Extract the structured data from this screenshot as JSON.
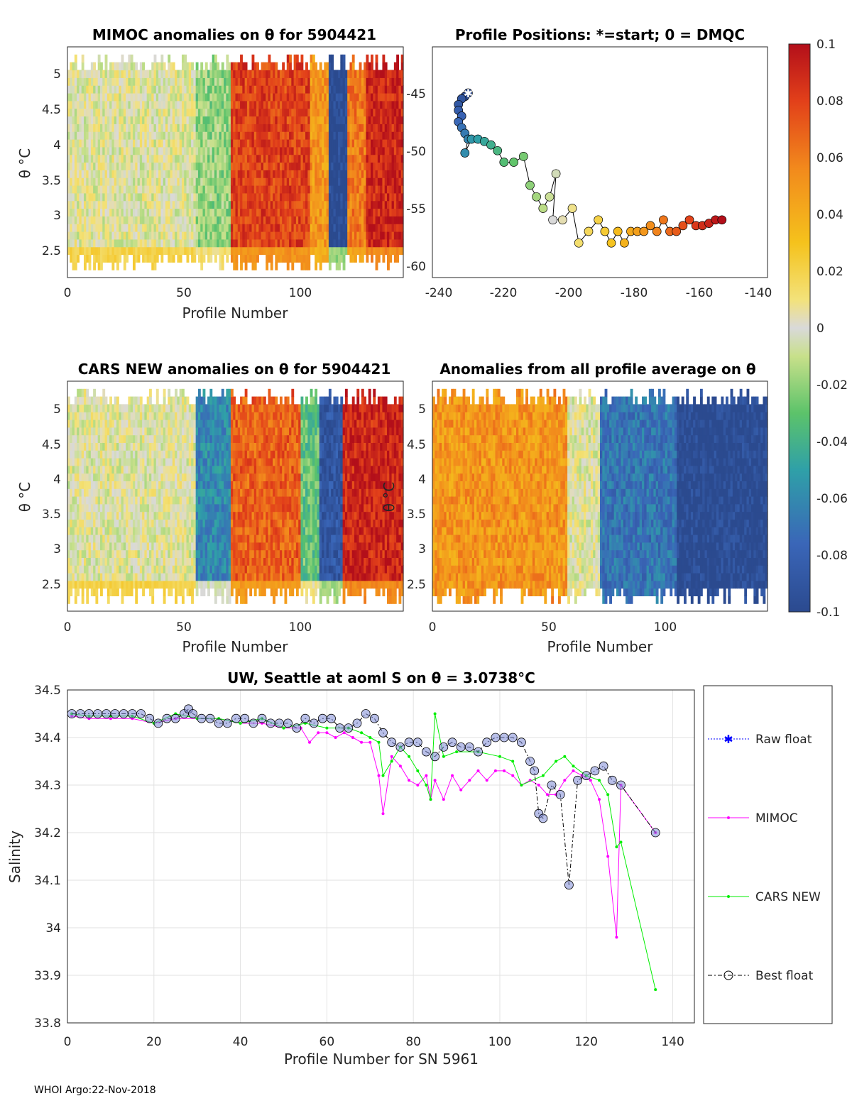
{
  "footer": "WHOI Argo:22-Nov-2018",
  "colorbar": {
    "ticks": [
      "0.1",
      "0.08",
      "0.06",
      "0.04",
      "0.02",
      "0",
      "-0.02",
      "-0.04",
      "-0.06",
      "-0.08",
      "-0.1"
    ],
    "range": [
      -0.1,
      0.1
    ]
  },
  "panels": {
    "mimoc": {
      "title": "MIMOC anomalies on θ  for 5904421",
      "xlabel": "Profile Number",
      "ylabel": "θ °C",
      "xticks": [
        "0",
        "50",
        "100"
      ],
      "yticks": [
        "5",
        "4.5",
        "4",
        "3.5",
        "3",
        "2.5"
      ]
    },
    "positions": {
      "title": "Profile Positions: *=start; 0 = DMQC",
      "xticks": [
        "-240",
        "-220",
        "-200",
        "-180",
        "-160",
        "-140"
      ],
      "yticks": [
        "-45",
        "-50",
        "-55",
        "-60"
      ]
    },
    "cars": {
      "title": "CARS NEW anomalies on θ for 5904421",
      "xlabel": "Profile Number",
      "ylabel": "θ °C",
      "xticks": [
        "0",
        "50",
        "100"
      ],
      "yticks": [
        "5",
        "4.5",
        "4",
        "3.5",
        "3",
        "2.5"
      ]
    },
    "allavg": {
      "title": "Anomalies from all profile average on θ",
      "xlabel": "Profile Number",
      "ylabel": "θ °C",
      "xticks": [
        "0",
        "50",
        "100"
      ],
      "yticks": [
        "5",
        "4.5",
        "4",
        "3.5",
        "3",
        "2.5"
      ]
    }
  },
  "chart_data": [
    {
      "type": "heatmap",
      "id": "mimoc",
      "title": "MIMOC anomalies on θ  for 5904421",
      "xlabel": "Profile Number",
      "ylabel": "θ °C",
      "xlim": [
        0,
        144
      ],
      "ylim": [
        2.1,
        5.4
      ],
      "column_bands": [
        {
          "from": 0,
          "to": 55,
          "anomaly": 0.0
        },
        {
          "from": 55,
          "to": 70,
          "anomaly": -0.02
        },
        {
          "from": 70,
          "to": 104,
          "anomaly": 0.08
        },
        {
          "from": 104,
          "to": 112,
          "anomaly": 0.05
        },
        {
          "from": 112,
          "to": 120,
          "anomaly": -0.1
        },
        {
          "from": 120,
          "to": 128,
          "anomaly": 0.06
        },
        {
          "from": 128,
          "to": 144,
          "anomaly": 0.09
        }
      ]
    },
    {
      "type": "scatter",
      "id": "positions",
      "title": "Profile Positions: *=start; 0 = DMQC",
      "xlim": [
        -241,
        -138
      ],
      "ylim": [
        -61,
        -41
      ],
      "start": {
        "lon": -230,
        "lat": -45
      },
      "track": [
        [
          -230,
          -45
        ],
        [
          -231,
          -45.3
        ],
        [
          -232,
          -45.5
        ],
        [
          -233,
          -46
        ],
        [
          -233,
          -46.5
        ],
        [
          -232,
          -47
        ],
        [
          -233,
          -47.5
        ],
        [
          -232,
          -48
        ],
        [
          -231,
          -48.5
        ],
        [
          -230,
          -49
        ],
        [
          -231,
          -50.2
        ],
        [
          -229,
          -49
        ],
        [
          -227,
          -49
        ],
        [
          -225,
          -49.2
        ],
        [
          -223,
          -49.5
        ],
        [
          -221,
          -50
        ],
        [
          -219,
          -51
        ],
        [
          -216,
          -51
        ],
        [
          -213,
          -50.5
        ],
        [
          -211,
          -53
        ],
        [
          -209,
          -54
        ],
        [
          -207,
          -55
        ],
        [
          -205,
          -54
        ],
        [
          -203,
          -52
        ],
        [
          -204,
          -56
        ],
        [
          -201,
          -56
        ],
        [
          -198,
          -55
        ],
        [
          -196,
          -58
        ],
        [
          -193,
          -57
        ],
        [
          -190,
          -56
        ],
        [
          -188,
          -57
        ],
        [
          -186,
          -58
        ],
        [
          -184,
          -57
        ],
        [
          -182,
          -58
        ],
        [
          -180,
          -57
        ],
        [
          -178,
          -57
        ],
        [
          -176,
          -57
        ],
        [
          -174,
          -56.5
        ],
        [
          -172,
          -57
        ],
        [
          -170,
          -56
        ],
        [
          -168,
          -57
        ],
        [
          -166,
          -57
        ],
        [
          -164,
          -56.5
        ],
        [
          -162,
          -56
        ],
        [
          -160,
          -56.5
        ],
        [
          -158,
          -56.5
        ],
        [
          -156,
          -56.3
        ],
        [
          -154,
          -56
        ],
        [
          -152,
          -56
        ]
      ]
    },
    {
      "type": "heatmap",
      "id": "cars",
      "title": "CARS NEW anomalies on θ for 5904421",
      "xlabel": "Profile Number",
      "ylabel": "θ °C",
      "xlim": [
        0,
        144
      ],
      "ylim": [
        2.1,
        5.4
      ],
      "column_bands": [
        {
          "from": 0,
          "to": 55,
          "anomaly": 0.0
        },
        {
          "from": 55,
          "to": 70,
          "anomaly": -0.06
        },
        {
          "from": 70,
          "to": 100,
          "anomaly": 0.07
        },
        {
          "from": 100,
          "to": 108,
          "anomaly": -0.03
        },
        {
          "from": 108,
          "to": 118,
          "anomaly": -0.09
        },
        {
          "from": 118,
          "to": 144,
          "anomaly": 0.09
        }
      ]
    },
    {
      "type": "heatmap",
      "id": "allavg",
      "title": "Anomalies from all profile average on θ",
      "xlabel": "Profile Number",
      "ylabel": "θ °C",
      "xlim": [
        0,
        144
      ],
      "ylim": [
        2.1,
        5.4
      ],
      "column_bands": [
        {
          "from": 0,
          "to": 58,
          "anomaly": 0.05
        },
        {
          "from": 58,
          "to": 72,
          "anomaly": 0.0
        },
        {
          "from": 72,
          "to": 105,
          "anomaly": -0.07
        },
        {
          "from": 105,
          "to": 144,
          "anomaly": -0.1
        }
      ]
    },
    {
      "type": "line",
      "id": "salinity",
      "title": "UW, Seattle at aoml S on θ = 3.0738°C",
      "xlabel": "Profile Number for SN 5961",
      "ylabel": "Salinity",
      "xlim": [
        0,
        145
      ],
      "ylim": [
        33.8,
        34.5
      ],
      "xticks": [
        0,
        20,
        40,
        60,
        80,
        100,
        120,
        140
      ],
      "yticks": [
        34.5,
        34.4,
        34.3,
        34.2,
        34.1,
        34,
        33.9,
        33.8
      ],
      "legend": [
        "Raw float",
        "MIMOC",
        "CARS NEW",
        "Best float"
      ],
      "series": [
        {
          "name": "MIMOC",
          "color": "#ff00ff",
          "marker": "dot",
          "x": [
            1,
            5,
            10,
            15,
            20,
            25,
            30,
            35,
            40,
            45,
            50,
            54,
            56,
            58,
            60,
            62,
            64,
            66,
            68,
            70,
            72,
            73,
            75,
            77,
            79,
            81,
            83,
            84,
            85,
            87,
            89,
            91,
            93,
            95,
            97,
            99,
            101,
            103,
            105,
            107,
            109,
            111,
            113,
            115,
            117,
            119,
            121,
            123,
            125,
            127,
            128,
            136
          ],
          "y": [
            34.445,
            34.44,
            34.44,
            34.44,
            34.43,
            34.44,
            34.44,
            34.44,
            34.43,
            34.43,
            34.42,
            34.42,
            34.39,
            34.41,
            34.41,
            34.4,
            34.41,
            34.4,
            34.39,
            34.39,
            34.32,
            34.24,
            34.36,
            34.34,
            34.31,
            34.3,
            34.32,
            34.27,
            34.31,
            34.27,
            34.32,
            34.29,
            34.31,
            34.33,
            34.31,
            34.33,
            34.33,
            34.32,
            34.3,
            34.31,
            34.3,
            34.28,
            34.28,
            34.31,
            34.33,
            34.32,
            34.31,
            34.27,
            34.15,
            33.98,
            34.3,
            34.2
          ]
        },
        {
          "name": "CARS NEW",
          "color": "#00ee00",
          "marker": "dot",
          "x": [
            1,
            5,
            10,
            15,
            20,
            25,
            30,
            35,
            40,
            45,
            50,
            55,
            60,
            65,
            68,
            70,
            72,
            73,
            75,
            77,
            79,
            81,
            83,
            84,
            85,
            87,
            90,
            95,
            100,
            103,
            105,
            110,
            113,
            115,
            117,
            120,
            123,
            125,
            127,
            128,
            136
          ],
          "y": [
            34.45,
            34.445,
            34.445,
            34.445,
            34.43,
            34.45,
            34.44,
            34.44,
            34.43,
            34.44,
            34.42,
            34.43,
            34.42,
            34.42,
            34.41,
            34.4,
            34.39,
            34.32,
            34.35,
            34.38,
            34.36,
            34.33,
            34.3,
            34.27,
            34.45,
            34.36,
            34.37,
            34.37,
            34.36,
            34.35,
            34.3,
            34.32,
            34.35,
            34.36,
            34.34,
            34.32,
            34.31,
            34.28,
            34.17,
            34.18,
            33.87
          ]
        },
        {
          "name": "Best float",
          "color": "#000000",
          "marker": "circle",
          "x": [
            1,
            3,
            5,
            7,
            9,
            11,
            13,
            15,
            17,
            19,
            21,
            23,
            25,
            27,
            28,
            29,
            31,
            33,
            35,
            37,
            39,
            41,
            43,
            45,
            47,
            49,
            51,
            53,
            55,
            57,
            59,
            61,
            63,
            65,
            67,
            69,
            71,
            73,
            75,
            77,
            79,
            81,
            83,
            85,
            87,
            89,
            91,
            93,
            95,
            97,
            99,
            101,
            103,
            105,
            107,
            108,
            109,
            110,
            112,
            114,
            116,
            118,
            120,
            122,
            124,
            126,
            128,
            136
          ],
          "y": [
            34.45,
            34.45,
            34.45,
            34.45,
            34.45,
            34.45,
            34.45,
            34.45,
            34.45,
            34.44,
            34.43,
            34.44,
            34.44,
            34.45,
            34.46,
            34.45,
            34.44,
            34.44,
            34.43,
            34.43,
            34.44,
            34.44,
            34.43,
            34.44,
            34.43,
            34.43,
            34.43,
            34.42,
            34.44,
            34.43,
            34.44,
            34.44,
            34.42,
            34.42,
            34.43,
            34.45,
            34.44,
            34.41,
            34.39,
            34.38,
            34.39,
            34.39,
            34.37,
            34.36,
            34.38,
            34.39,
            34.38,
            34.38,
            34.37,
            34.39,
            34.4,
            34.4,
            34.4,
            34.39,
            34.35,
            34.33,
            34.24,
            34.23,
            34.3,
            34.28,
            34.09,
            34.31,
            34.32,
            34.33,
            34.34,
            34.31,
            34.3,
            34.2
          ]
        }
      ]
    }
  ]
}
